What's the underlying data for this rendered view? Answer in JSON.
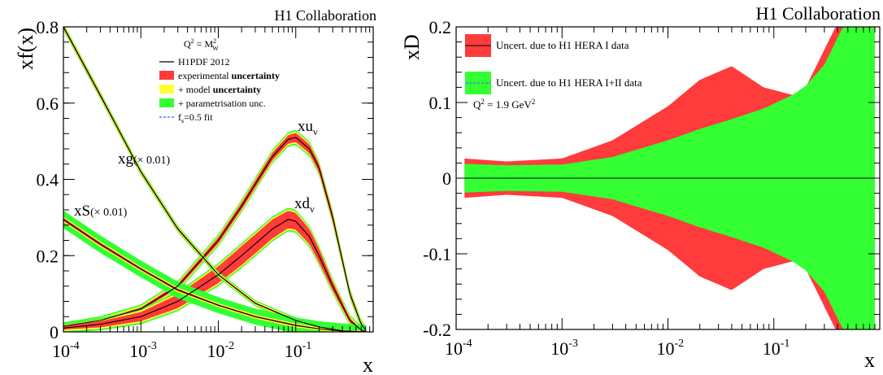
{
  "chart_data": [
    {
      "type": "line",
      "panel": "left",
      "collaboration": "H1 Collaboration",
      "ylabel": "xf(x)",
      "xlabel": "x",
      "xscale": "log",
      "xlim": [
        0.0001,
        1
      ],
      "ylim": [
        0,
        0.8
      ],
      "xticks": [
        {
          "value": 0.0001,
          "base": "10",
          "exp": "-4"
        },
        {
          "value": 0.001,
          "base": "10",
          "exp": "-3"
        },
        {
          "value": 0.01,
          "base": "10",
          "exp": "-2"
        },
        {
          "value": 0.1,
          "base": "10",
          "exp": "-1"
        }
      ],
      "yticks": [
        {
          "value": 0,
          "label": "0"
        },
        {
          "value": 0.2,
          "label": "0.2"
        },
        {
          "value": 0.4,
          "label": "0.4"
        },
        {
          "value": 0.6,
          "label": "0.6"
        },
        {
          "value": 0.8,
          "label": "0.8"
        }
      ],
      "legend": {
        "placement": "top-right",
        "scale_main": "Q",
        "scale_sup": "2",
        "scale_eq": " = M",
        "scale_w_sup": "2",
        "scale_w_sub": "W",
        "entries": [
          {
            "style": "line",
            "color": "#000000",
            "text": "H1PDF 2012"
          },
          {
            "style": "box",
            "color": "#ff3b3b",
            "text": "experimental ",
            "bold": "uncertainty"
          },
          {
            "style": "box",
            "color": "#ffff33",
            "text": "+ model ",
            "bold": "uncertainty"
          },
          {
            "style": "box",
            "color": "#33ff33",
            "text": "+ parametrisation unc."
          },
          {
            "style": "dash",
            "color": "#3366ff",
            "text_f": "f",
            "text_sub": "s",
            "text": "=0.5 fit"
          }
        ]
      },
      "curve_labels": {
        "xuv_main": "xu",
        "xuv_sub": "v",
        "xdv_main": "xd",
        "xdv_sub": "v",
        "xg_main": "xg",
        "xg_scale": "(× 0.01)",
        "xs_main": "xS",
        "xs_scale": "(× 0.01)"
      },
      "series": [
        {
          "name": "xu_v",
          "x": [
            0.0001,
            0.0003,
            0.001,
            0.003,
            0.01,
            0.02,
            0.05,
            0.08,
            0.1,
            0.15,
            0.2,
            0.3,
            0.5,
            0.7,
            0.8
          ],
          "y": [
            0.015,
            0.03,
            0.06,
            0.12,
            0.24,
            0.33,
            0.46,
            0.505,
            0.51,
            0.48,
            0.43,
            0.3,
            0.1,
            0.02,
            0.005
          ],
          "exp": [
            0.002,
            0.003,
            0.004,
            0.006,
            0.008,
            0.009,
            0.01,
            0.011,
            0.012,
            0.012,
            0.011,
            0.01,
            0.006,
            0.004,
            0.003
          ],
          "model": 0.004,
          "param": 0.004
        },
        {
          "name": "xd_v",
          "x": [
            0.0001,
            0.0003,
            0.001,
            0.003,
            0.01,
            0.02,
            0.05,
            0.08,
            0.1,
            0.15,
            0.2,
            0.3,
            0.5,
            0.7,
            0.8
          ],
          "y": [
            0.01,
            0.02,
            0.04,
            0.08,
            0.15,
            0.2,
            0.27,
            0.295,
            0.29,
            0.25,
            0.2,
            0.12,
            0.03,
            0.005,
            0.001
          ],
          "exp": [
            0.004,
            0.008,
            0.012,
            0.018,
            0.022,
            0.025,
            0.025,
            0.023,
            0.022,
            0.02,
            0.018,
            0.012,
            0.006,
            0.003,
            0.002
          ],
          "model": 0.004,
          "param": 0.004
        },
        {
          "name": "xg_x0.01",
          "x": [
            0.0001,
            0.0003,
            0.001,
            0.003,
            0.01,
            0.03,
            0.1,
            0.2,
            0.4,
            0.8
          ],
          "y": [
            0.8,
            0.62,
            0.42,
            0.27,
            0.15,
            0.075,
            0.03,
            0.013,
            0.003,
            0.0
          ],
          "exp": [
            0.004,
            0.004,
            0.003,
            0.003,
            0.002,
            0.002,
            0.002,
            0.002,
            0.001,
            0.0
          ],
          "model": 0.003,
          "param": 0.003
        },
        {
          "name": "xS_x0.01",
          "x": [
            0.0001,
            0.0003,
            0.001,
            0.003,
            0.01,
            0.03,
            0.1,
            0.2,
            0.4,
            0.8
          ],
          "y": [
            0.295,
            0.23,
            0.165,
            0.11,
            0.07,
            0.04,
            0.017,
            0.008,
            0.002,
            0.0
          ],
          "exp": [
            0.004,
            0.004,
            0.003,
            0.003,
            0.002,
            0.002,
            0.002,
            0.001,
            0.001,
            0.0
          ],
          "model": 0.003,
          "param": 0.016
        }
      ]
    },
    {
      "type": "area",
      "panel": "right",
      "collaboration": "H1 Collaboration",
      "ylabel": "xD",
      "xlabel": "x",
      "xscale": "log",
      "xlim": [
        0.0001,
        1
      ],
      "ylim": [
        -0.2,
        0.2
      ],
      "xticks": [
        {
          "value": 0.0001,
          "base": "10",
          "exp": "-4"
        },
        {
          "value": 0.001,
          "base": "10",
          "exp": "-3"
        },
        {
          "value": 0.01,
          "base": "10",
          "exp": "-2"
        },
        {
          "value": 0.1,
          "base": "10",
          "exp": "-1"
        }
      ],
      "yticks": [
        {
          "value": -0.2,
          "label": "-0.2"
        },
        {
          "value": -0.1,
          "label": "-0.1"
        },
        {
          "value": 0,
          "label": "0"
        },
        {
          "value": 0.1,
          "label": "0.1"
        },
        {
          "value": 0.2,
          "label": "0.2"
        }
      ],
      "legend": {
        "placement": "top-left",
        "entries": [
          {
            "style": "box-line",
            "color": "#ff3b3b",
            "text": "Uncert. due to H1 HERA I data"
          },
          {
            "style": "box-dash",
            "color": "#33ff33",
            "text": "Uncert. due to H1 HERA I+II data"
          }
        ],
        "scale_main": "Q",
        "scale_sup": "2",
        "scale_eq": " = 1.9 GeV",
        "scale_unit_sup": "2"
      },
      "series": [
        {
          "name": "Uncert. due to H1 HERA I data",
          "x": [
            0.00012,
            0.0003,
            0.001,
            0.003,
            0.01,
            0.02,
            0.04,
            0.08,
            0.15,
            0.2,
            0.3,
            0.45,
            0.6
          ],
          "y": [
            0.026,
            0.022,
            0.026,
            0.05,
            0.095,
            0.13,
            0.148,
            0.12,
            0.11,
            0.12,
            0.17,
            0.22,
            0.22
          ]
        },
        {
          "name": "Uncert. due to H1 HERA I+II data",
          "x": [
            0.00012,
            0.0003,
            0.001,
            0.003,
            0.01,
            0.02,
            0.04,
            0.08,
            0.15,
            0.2,
            0.3,
            0.45,
            0.6,
            0.9
          ],
          "y": [
            0.019,
            0.017,
            0.018,
            0.028,
            0.05,
            0.065,
            0.078,
            0.092,
            0.11,
            0.122,
            0.15,
            0.2,
            0.22,
            0.22
          ]
        }
      ]
    }
  ]
}
